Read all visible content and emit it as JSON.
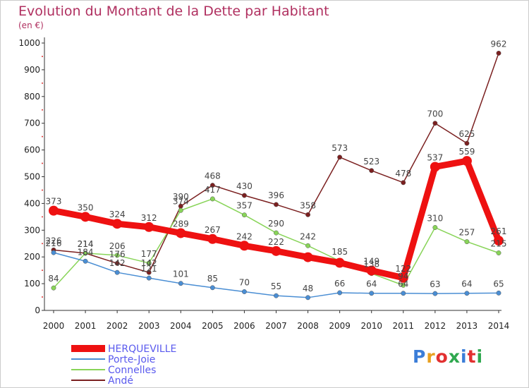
{
  "header": {
    "title": "Evolution du Montant de la Dette par Habitant",
    "unit": "(en €)"
  },
  "logo": {
    "text": "Proxiti",
    "colors": [
      "#3b7dd8",
      "#e8a020",
      "#e23030",
      "#2fa84f",
      "#3b7dd8",
      "#e23030",
      "#2fa84f"
    ]
  },
  "chart_data": {
    "type": "line",
    "title": "Evolution du Montant de la Dette par Habitant",
    "subtitle": "(en €)",
    "x": [
      "2000",
      "2001",
      "2002",
      "2003",
      "2004",
      "2005",
      "2006",
      "2007",
      "2008",
      "2009",
      "2010",
      "2011",
      "2012",
      "2013",
      "2014"
    ],
    "ylim": [
      0,
      1000
    ],
    "yticks": [
      0,
      100,
      200,
      300,
      400,
      500,
      600,
      700,
      800,
      900,
      1000
    ],
    "grid": false,
    "legend_position": "bottom-left",
    "series": [
      {
        "name": "HERQUEVILLE",
        "color": "#ee1111",
        "width": 9,
        "values": [
          373,
          350,
          324,
          312,
          289,
          267,
          242,
          222,
          199,
          178,
          149,
          122,
          537,
          559,
          261
        ],
        "labels": [
          "373",
          "350",
          "324",
          "312",
          "289",
          "267",
          "242",
          "222",
          "",
          "",
          "149",
          "122",
          "537",
          "559",
          "261"
        ]
      },
      {
        "name": "Porte-Joie",
        "color": "#4a8ed4",
        "width": 1.5,
        "values": [
          216,
          184,
          142,
          121,
          101,
          85,
          70,
          55,
          48,
          66,
          64,
          64,
          63,
          64,
          65
        ],
        "labels": [
          "216",
          "184",
          "142",
          "121",
          "101",
          "85",
          "70",
          "55",
          "48",
          "66",
          "64",
          "64",
          "63",
          "64",
          "65"
        ]
      },
      {
        "name": "Connelles",
        "color": "#88d458",
        "width": 1.5,
        "values": [
          84,
          214,
          206,
          177,
          374,
          417,
          357,
          290,
          242,
          185,
          138,
          94,
          310,
          257,
          215
        ],
        "labels": [
          "84",
          "214",
          "206",
          "177",
          "374",
          "417",
          "357",
          "290",
          "242",
          "185",
          "138",
          "94",
          "310",
          "257",
          "215"
        ]
      },
      {
        "name": "Andé",
        "color": "#7b2020",
        "width": 1.5,
        "values": [
          226,
          214,
          176,
          142,
          390,
          468,
          430,
          396,
          358,
          573,
          523,
          478,
          700,
          625,
          962
        ],
        "labels": [
          "226",
          "214",
          "176",
          "142",
          "390",
          "468",
          "430",
          "396",
          "358",
          "573",
          "523",
          "478",
          "700",
          "625",
          "962"
        ]
      }
    ]
  }
}
